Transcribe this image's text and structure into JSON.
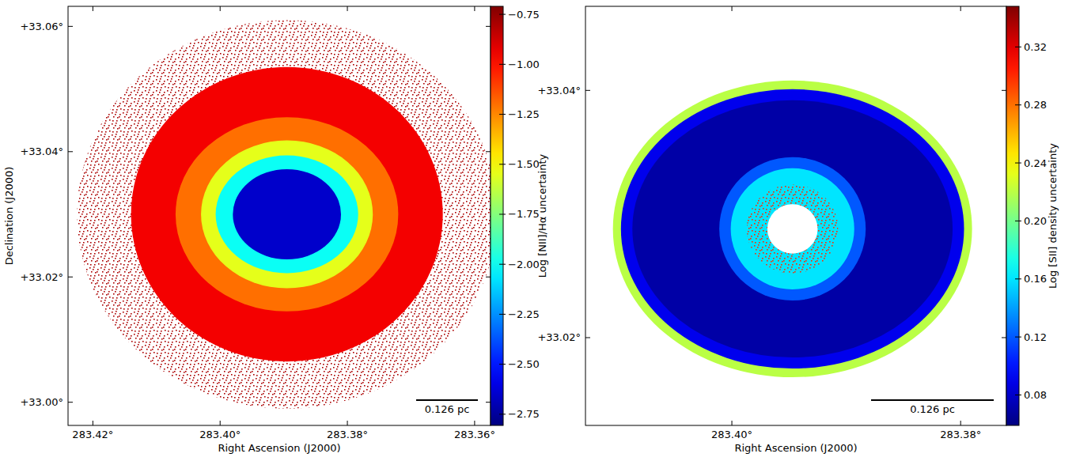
{
  "chart_data": [
    {
      "type": "heatmap",
      "x_label": "Right Ascension (J2000)",
      "y_label": "Declination (J2000)",
      "xlim": [
        283.4239,
        283.3575
      ],
      "ylim": [
        32.9963,
        33.0632
      ],
      "xticks": [
        {
          "value": 283.42,
          "label": "283.42°"
        },
        {
          "value": 283.4,
          "label": "283.40°"
        },
        {
          "value": 283.38,
          "label": "283.38°"
        },
        {
          "value": 283.36,
          "label": "283.36°"
        }
      ],
      "yticks": [
        {
          "value": 33.0,
          "label": "+33.00°"
        },
        {
          "value": 33.02,
          "label": "+33.02°"
        },
        {
          "value": 33.04,
          "label": "+33.04°"
        },
        {
          "value": 33.06,
          "label": "+33.06°"
        }
      ],
      "regions": [
        {
          "ra": 283.3895,
          "dec": 33.03,
          "rx": 0.033,
          "ry": 0.031,
          "value": -0.8,
          "marker": "speckle"
        },
        {
          "ra": 283.3895,
          "dec": 33.03,
          "rx": 0.0245,
          "ry": 0.0235,
          "value": -0.95
        },
        {
          "ra": 283.3895,
          "dec": 33.03,
          "rx": 0.0175,
          "ry": 0.0155,
          "value": -1.2
        },
        {
          "ra": 283.3895,
          "dec": 33.03,
          "rx": 0.0135,
          "ry": 0.0118,
          "value": -1.55
        },
        {
          "ra": 283.3895,
          "dec": 33.03,
          "rx": 0.0112,
          "ry": 0.0094,
          "value": -2.0
        },
        {
          "ra": 283.3895,
          "dec": 33.03,
          "rx": 0.0085,
          "ry": 0.0072,
          "value": -2.65
        }
      ],
      "clim": [
        -2.806,
        -0.71
      ],
      "cticks": [
        {
          "value": -0.75,
          "label": "−0.75"
        },
        {
          "value": -1.0,
          "label": "−1.00"
        },
        {
          "value": -1.25,
          "label": "−1.25"
        },
        {
          "value": -1.5,
          "label": "−1.50"
        },
        {
          "value": -1.75,
          "label": "−1.75"
        },
        {
          "value": -2.0,
          "label": "−2.00"
        },
        {
          "value": -2.25,
          "label": "−2.25"
        },
        {
          "value": -2.5,
          "label": "−2.50"
        },
        {
          "value": -2.75,
          "label": "−2.75"
        }
      ],
      "colorbar_label": "Log [NII]/Hα uncertainty",
      "scale_bar_label": "0.126 pc"
    },
    {
      "type": "heatmap",
      "x_label": "Right Ascension (J2000)",
      "xlim": [
        283.4128,
        283.376
      ],
      "ylim": [
        33.0129,
        33.0468
      ],
      "xticks": [
        {
          "value": 283.4,
          "label": "283.40°"
        },
        {
          "value": 283.38,
          "label": "283.38°"
        }
      ],
      "yticks": [
        {
          "value": 33.02,
          "label": "+33.02°"
        },
        {
          "value": 33.04,
          "label": "+33.04°"
        }
      ],
      "regions": [
        {
          "ra": 283.3947,
          "dec": 33.0288,
          "rx": 0.0157,
          "ry": 0.012,
          "value": 0.22
        },
        {
          "ra": 283.3947,
          "dec": 33.0288,
          "rx": 0.015,
          "ry": 0.0113,
          "value": 0.09
        },
        {
          "ra": 283.3947,
          "dec": 33.0288,
          "rx": 0.014,
          "ry": 0.0104,
          "value": 0.07
        },
        {
          "ra": 283.3947,
          "dec": 33.0288,
          "rx": 0.0064,
          "ry": 0.0058,
          "value": 0.12
        },
        {
          "ra": 283.3947,
          "dec": 33.0288,
          "rx": 0.0054,
          "ry": 0.0049,
          "value": 0.16
        },
        {
          "ra": 283.3947,
          "dec": 33.0288,
          "rx": 0.004,
          "ry": 0.0036,
          "value": 0.3,
          "marker": "speckle"
        },
        {
          "ra": 283.3947,
          "dec": 33.0288,
          "rx": 0.0022,
          "ry": 0.002,
          "value": null
        }
      ],
      "clim": [
        0.059,
        0.348
      ],
      "cticks": [
        {
          "value": 0.08,
          "label": "0.08"
        },
        {
          "value": 0.12,
          "label": "0.12"
        },
        {
          "value": 0.16,
          "label": "0.16"
        },
        {
          "value": 0.2,
          "label": "0.20"
        },
        {
          "value": 0.24,
          "label": "0.24"
        },
        {
          "value": 0.28,
          "label": "0.28"
        },
        {
          "value": 0.32,
          "label": "0.32"
        }
      ],
      "colorbar_label": "Log [SII] density uncertainty",
      "scale_bar_label": "0.126 pc"
    }
  ]
}
